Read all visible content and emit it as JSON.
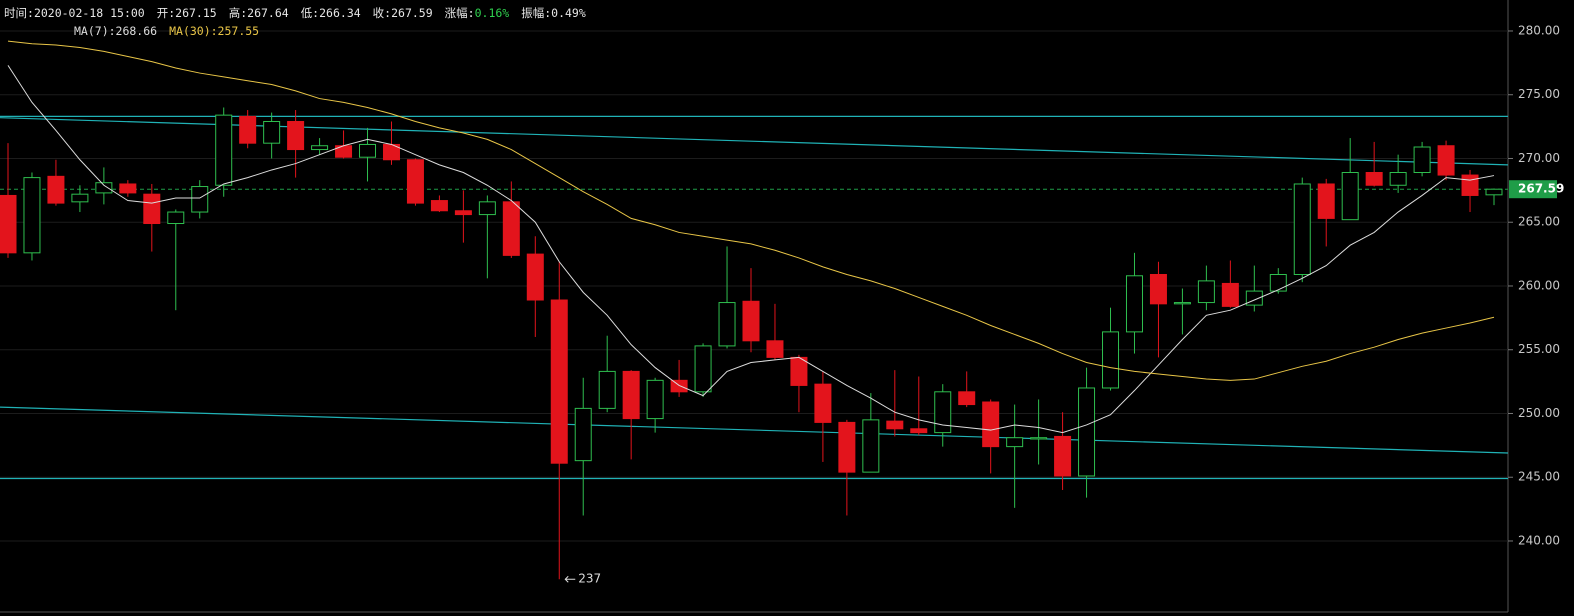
{
  "chart_data": {
    "type": "candlestick",
    "header": [
      {
        "label": "时间:",
        "value": "2020-02-18 15:00"
      },
      {
        "label": "开:",
        "value": "267.15"
      },
      {
        "label": "高:",
        "value": "267.64"
      },
      {
        "label": "低:",
        "value": "266.34"
      },
      {
        "label": "收:",
        "value": "267.59"
      },
      {
        "label": "涨幅:",
        "value": "0.16%",
        "color": "#2fd14f"
      },
      {
        "label": "振幅:",
        "value": "0.49%"
      }
    ],
    "up_color": "#2fbf4f",
    "down_color": "#e3141c",
    "grid": true,
    "ylim": [
      234.43,
      282.43
    ],
    "yticks": [
      {
        "value": 240,
        "label": "240.00"
      },
      {
        "value": 245,
        "label": "245.00"
      },
      {
        "value": 250,
        "label": "250.00"
      },
      {
        "value": 255,
        "label": "255.00"
      },
      {
        "value": 260,
        "label": "260.00"
      },
      {
        "value": 265,
        "label": "265.00"
      },
      {
        "value": 270,
        "label": "270.00"
      },
      {
        "value": 275,
        "label": "275.00"
      },
      {
        "value": 280,
        "label": "280.00"
      }
    ],
    "categories": [
      null,
      null,
      null,
      null,
      null,
      null,
      null,
      null,
      null,
      null,
      null,
      null,
      null,
      null,
      null,
      null,
      null,
      null,
      null,
      null,
      null,
      null,
      null,
      null,
      null,
      null,
      null,
      null,
      null,
      null,
      null,
      null,
      null,
      null,
      null,
      null,
      null,
      null,
      null,
      null,
      null,
      null,
      null,
      null,
      null,
      null,
      null,
      null,
      null,
      null,
      null,
      null,
      null,
      null,
      null,
      null,
      null,
      null,
      null,
      null,
      null,
      null,
      null
    ],
    "open": [
      267.1,
      262.6,
      268.6,
      266.6,
      267.3,
      268.0,
      267.2,
      264.9,
      265.8,
      267.9,
      273.3,
      271.2,
      272.9,
      270.7,
      271.0,
      270.1,
      271.1,
      269.9,
      266.7,
      265.9,
      265.6,
      266.6,
      262.5,
      258.9,
      246.3,
      250.4,
      253.3,
      249.6,
      252.6,
      251.7,
      255.3,
      258.8,
      255.7,
      254.4,
      252.3,
      249.3,
      245.4,
      249.4,
      248.8,
      248.5,
      251.7,
      250.9,
      247.4,
      248.0,
      248.2,
      245.1,
      252.0,
      256.4,
      260.9,
      258.6,
      258.7,
      260.2,
      258.5,
      259.6,
      260.9,
      268.0,
      265.2,
      268.9,
      267.9,
      268.9,
      271.0,
      268.7,
      267.15
    ],
    "high": [
      271.2,
      268.9,
      269.9,
      267.9,
      269.3,
      268.3,
      268.0,
      266.0,
      268.3,
      274.0,
      273.8,
      273.6,
      273.8,
      271.6,
      272.2,
      272.4,
      272.9,
      270.0,
      267.1,
      267.5,
      267.1,
      268.2,
      263.9,
      261.9,
      252.8,
      256.1,
      253.4,
      252.8,
      254.2,
      255.5,
      263.1,
      261.4,
      258.6,
      254.6,
      253.3,
      249.5,
      251.6,
      253.4,
      252.9,
      252.3,
      253.3,
      251.1,
      250.7,
      251.1,
      250.1,
      253.6,
      258.3,
      262.6,
      261.9,
      259.8,
      261.6,
      262.0,
      261.6,
      261.4,
      268.5,
      268.4,
      271.6,
      271.3,
      270.3,
      271.3,
      271.4,
      269.1,
      267.64
    ],
    "low": [
      262.2,
      262.0,
      266.3,
      265.8,
      266.4,
      267.0,
      262.7,
      258.1,
      265.3,
      267.0,
      270.8,
      270.0,
      268.5,
      270.3,
      270.0,
      268.2,
      269.5,
      266.3,
      265.8,
      263.4,
      260.6,
      262.2,
      256.0,
      237,
      242.0,
      250.1,
      246.4,
      248.5,
      251.3,
      251.3,
      255.1,
      254.8,
      254.2,
      250.1,
      246.2,
      242.0,
      245.4,
      248.2,
      248.3,
      247.4,
      250.5,
      245.3,
      242.6,
      246.0,
      244.0,
      243.4,
      251.8,
      254.7,
      254.4,
      256.2,
      258.1,
      258.3,
      258.0,
      259.4,
      260.3,
      263.1,
      265.2,
      267.8,
      267.3,
      268.6,
      268.3,
      265.8,
      266.34
    ],
    "close": [
      262.6,
      268.5,
      266.5,
      267.2,
      268.1,
      267.3,
      264.9,
      265.8,
      267.8,
      273.4,
      271.2,
      272.9,
      270.7,
      271.0,
      270.1,
      271.1,
      269.9,
      266.5,
      265.9,
      265.6,
      266.6,
      262.4,
      258.9,
      246.1,
      250.4,
      253.3,
      249.6,
      252.6,
      251.7,
      255.3,
      258.7,
      255.7,
      254.4,
      252.2,
      249.3,
      245.4,
      249.5,
      248.8,
      248.5,
      251.7,
      250.7,
      247.4,
      248.1,
      248.1,
      245.1,
      252.0,
      256.4,
      260.8,
      258.6,
      258.7,
      260.4,
      258.4,
      259.6,
      260.9,
      268.0,
      265.3,
      268.9,
      267.9,
      268.9,
      270.9,
      268.7,
      267.1,
      267.59
    ],
    "series": [
      {
        "name": "MA(7):268.66",
        "color": "#dcdcdc",
        "values": [
          277.3,
          274.4,
          272.2,
          269.9,
          267.9,
          266.7,
          266.5,
          266.9,
          266.9,
          268.0,
          268.5,
          269.1,
          269.6,
          270.3,
          271.0,
          271.5,
          271.1,
          270.3,
          269.5,
          268.9,
          267.9,
          266.7,
          265.0,
          261.9,
          259.5,
          257.7,
          255.4,
          253.6,
          252.2,
          251.4,
          253.3,
          254.0,
          254.2,
          254.4,
          253.3,
          252.2,
          251.2,
          250.1,
          249.5,
          249.1,
          248.9,
          248.7,
          249.1,
          248.9,
          248.5,
          249.1,
          249.9,
          251.8,
          253.8,
          255.8,
          257.7,
          258.1,
          258.9,
          259.7,
          260.6,
          261.6,
          263.2,
          264.2,
          265.8,
          267.1,
          268.5,
          268.3,
          268.66
        ]
      },
      {
        "name": "MA(30):257.55",
        "color": "#e8c547",
        "values": [
          279.2,
          279.0,
          278.9,
          278.7,
          278.4,
          278.0,
          277.6,
          277.1,
          276.7,
          276.4,
          276.1,
          275.8,
          275.3,
          274.7,
          274.4,
          274.0,
          273.5,
          272.9,
          272.4,
          272.0,
          271.5,
          270.7,
          269.6,
          268.5,
          267.4,
          266.4,
          265.3,
          264.8,
          264.2,
          263.9,
          263.6,
          263.3,
          262.8,
          262.2,
          261.5,
          260.9,
          260.4,
          259.8,
          259.1,
          258.4,
          257.7,
          256.9,
          256.2,
          255.5,
          254.7,
          254.0,
          253.6,
          253.3,
          253.1,
          252.9,
          252.7,
          252.6,
          252.7,
          253.2,
          253.7,
          254.1,
          254.7,
          255.2,
          255.8,
          256.3,
          256.7,
          257.1,
          257.55
        ]
      }
    ],
    "trendlines": [
      {
        "color": "#20b2b6",
        "values": [
          273.2,
          269.5
        ]
      },
      {
        "color": "#20b2b6",
        "values": [
          250.5,
          246.9
        ]
      },
      {
        "color": "#20b2b6",
        "values": [
          273.3,
          273.3
        ]
      },
      {
        "color": "#20b2b6",
        "values": [
          244.9,
          244.9
        ]
      }
    ],
    "last_price": 267.59,
    "last_price_color": "#1f9d48",
    "annotations": [
      {
        "text": "237",
        "value": 237
      }
    ]
  }
}
